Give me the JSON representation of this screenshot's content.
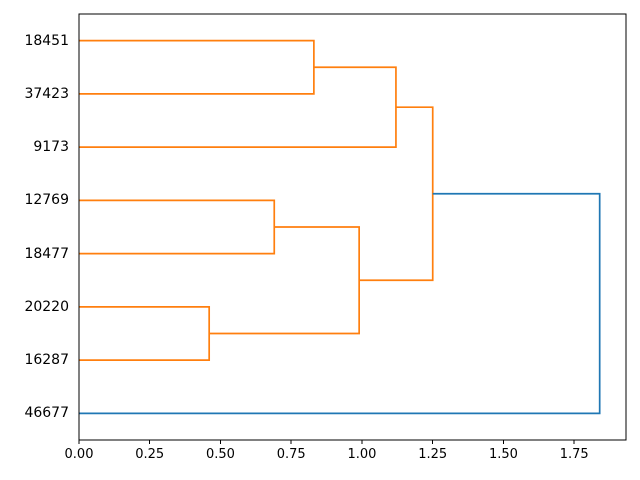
{
  "chart_data": {
    "type": "dendrogram",
    "title": "",
    "orientation": "horizontal-left-labels",
    "leaves": [
      "18451",
      "37423",
      "9173",
      "12769",
      "18477",
      "20220",
      "16287",
      "46677"
    ],
    "leaf_y_units": [
      75,
      65,
      55,
      45,
      35,
      25,
      15,
      5
    ],
    "links": [
      {
        "id": "m1",
        "children": [
          "18451",
          "37423"
        ],
        "height": 0.83,
        "color": "#ff7f0e"
      },
      {
        "id": "m2",
        "children": [
          "m1",
          "9173"
        ],
        "height": 1.12,
        "color": "#ff7f0e"
      },
      {
        "id": "m4",
        "children": [
          "12769",
          "18477"
        ],
        "height": 0.69,
        "color": "#ff7f0e"
      },
      {
        "id": "m5",
        "children": [
          "20220",
          "16287"
        ],
        "height": 0.46,
        "color": "#ff7f0e"
      },
      {
        "id": "m6",
        "children": [
          "m4",
          "m5"
        ],
        "height": 0.99,
        "color": "#ff7f0e"
      },
      {
        "id": "m3",
        "children": [
          "m2",
          "m6"
        ],
        "height": 1.25,
        "color": "#ff7f0e"
      },
      {
        "id": "m7",
        "children": [
          "m3",
          "46677"
        ],
        "height": 1.84,
        "color": "#1f77b4"
      }
    ],
    "xticks": [
      {
        "value": 0.0,
        "label": "0.00"
      },
      {
        "value": 0.25,
        "label": "0.25"
      },
      {
        "value": 0.5,
        "label": "0.50"
      },
      {
        "value": 0.75,
        "label": "0.75"
      },
      {
        "value": 1.0,
        "label": "1.00"
      },
      {
        "value": 1.25,
        "label": "1.25"
      },
      {
        "value": 1.5,
        "label": "1.50"
      },
      {
        "value": 1.75,
        "label": "1.75"
      }
    ],
    "xlabel": "",
    "ylabel": "",
    "xlim": [
      0,
      1.933
    ],
    "ylim": [
      0,
      80
    ],
    "grid": false,
    "legend": null,
    "colors": {
      "cluster_link": "#ff7f0e",
      "root_link": "#1f77b4",
      "axis": "#000000",
      "background": "#ffffff"
    }
  }
}
